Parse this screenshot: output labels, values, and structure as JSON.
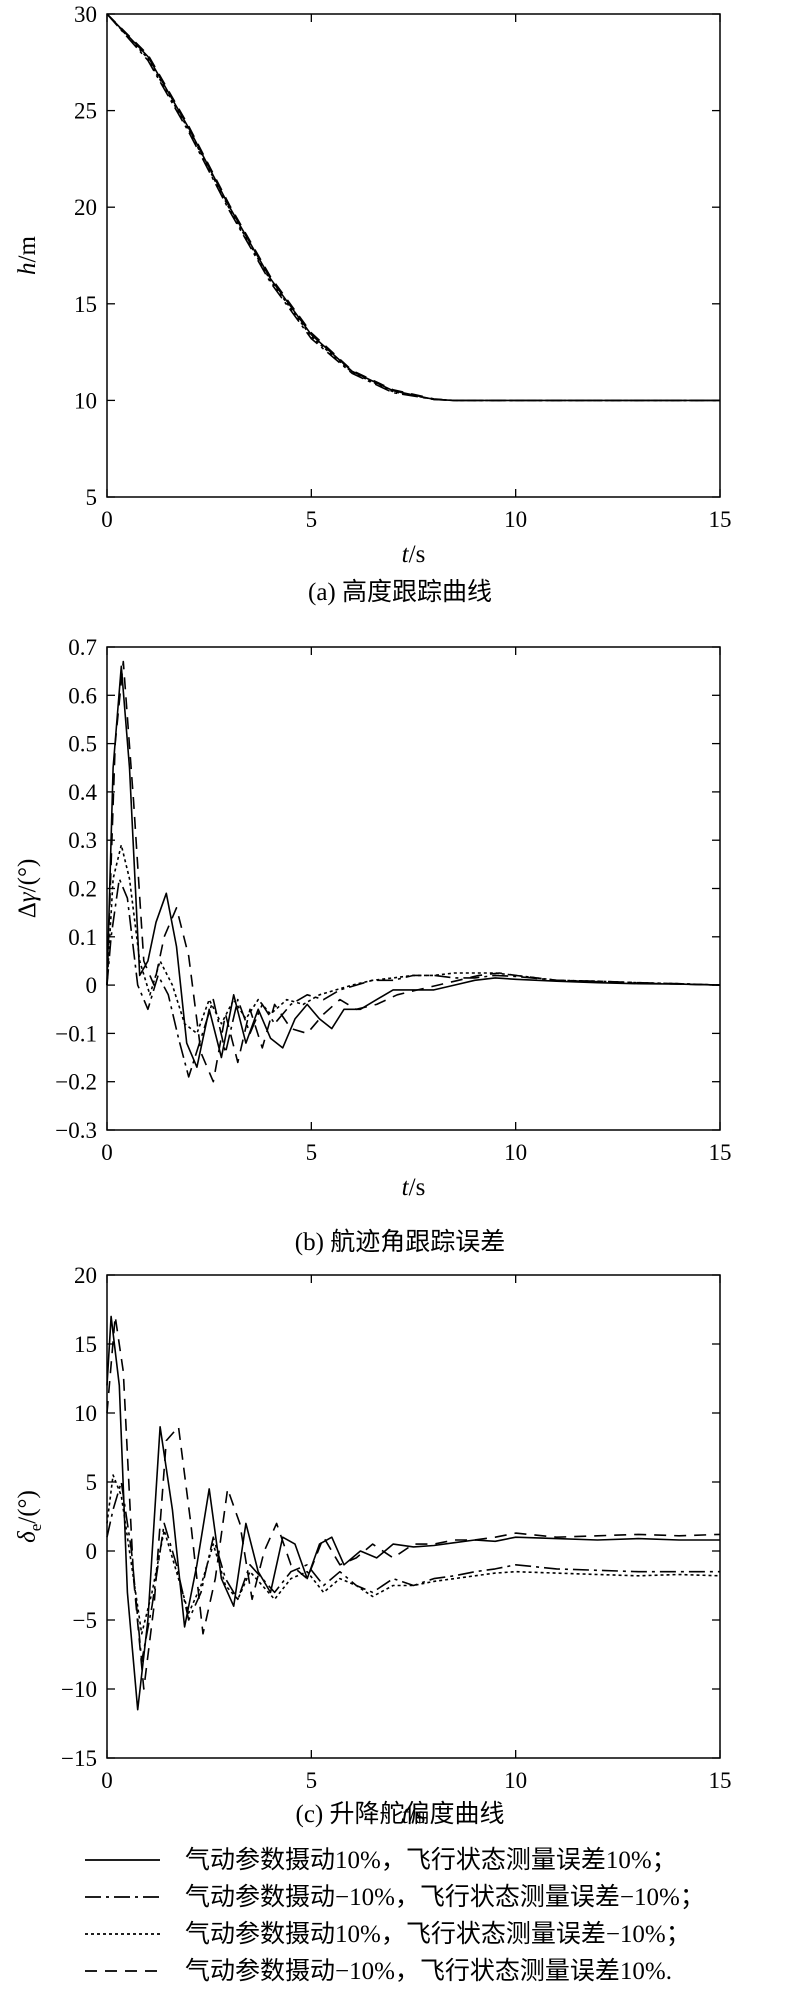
{
  "captions": [
    "(a) 高度跟踪曲线",
    "(b) 航迹角跟踪误差",
    "(c) 升降舵偏度曲线"
  ],
  "legend": [
    {
      "label": "气动参数摄动10%，飞行状态测量误差10%；",
      "style": "solid"
    },
    {
      "label": "气动参数摄动−10%，飞行状态测量误差−10%；",
      "style": "dashdot"
    },
    {
      "label": "气动参数摄动10%，飞行状态测量误差−10%；",
      "style": "dotted"
    },
    {
      "label": "气动参数摄动−10%，飞行状态测量误差10%.",
      "style": "dashed"
    }
  ],
  "chart_data": [
    {
      "type": "line",
      "title": "(a) 高度跟踪曲线",
      "xlabel": "t/s",
      "ylabel": "h/m",
      "xlim": [
        0,
        15
      ],
      "ylim": [
        5,
        30
      ],
      "xticks": [
        "0",
        "5",
        "10",
        "15"
      ],
      "yticks": [
        "5",
        "10",
        "15",
        "20",
        "25",
        "30"
      ],
      "grid": false,
      "series": [
        {
          "style": "solid",
          "x": [
            0,
            1,
            2,
            3,
            4,
            5,
            6,
            7,
            8,
            8.5,
            10,
            12,
            15
          ],
          "y": [
            30,
            27.8,
            24.1,
            20.0,
            16.3,
            13.4,
            11.5,
            10.5,
            10.05,
            10,
            10,
            10,
            10
          ]
        },
        {
          "style": "dashdot",
          "x": [
            0,
            1,
            2,
            3,
            4,
            5,
            6,
            7,
            8,
            8.5,
            10,
            12,
            15
          ],
          "y": [
            30,
            27.6,
            23.9,
            19.8,
            16.1,
            13.2,
            11.4,
            10.4,
            10.05,
            10,
            10,
            10,
            10
          ]
        },
        {
          "style": "dotted",
          "x": [
            0,
            1,
            2,
            3,
            4,
            5,
            6,
            7,
            8,
            8.5,
            10,
            12,
            15
          ],
          "y": [
            30,
            27.7,
            24.0,
            19.9,
            16.2,
            13.3,
            11.45,
            10.45,
            10.05,
            10,
            10,
            10,
            10
          ]
        },
        {
          "style": "dashed",
          "x": [
            0,
            1,
            2,
            3,
            4,
            5,
            6,
            7,
            8,
            8.5,
            10,
            12,
            15
          ],
          "y": [
            30,
            27.9,
            24.2,
            20.1,
            16.4,
            13.5,
            11.55,
            10.55,
            10.08,
            10,
            10,
            10,
            10
          ]
        }
      ]
    },
    {
      "type": "line",
      "title": "(b) 航迹角跟踪误差",
      "xlabel": "t/s",
      "ylabel": "Δγ/(°)",
      "xlim": [
        0,
        15
      ],
      "ylim": [
        -0.3,
        0.7
      ],
      "xticks": [
        "0",
        "5",
        "10",
        "15"
      ],
      "yticks": [
        "−0.3",
        "−0.2",
        "−0.1",
        "0",
        "0.1",
        "0.2",
        "0.3",
        "0.4",
        "0.5",
        "0.6",
        "0.7"
      ],
      "grid": false,
      "series": [
        {
          "style": "solid",
          "x": [
            0,
            0.15,
            0.35,
            0.55,
            0.8,
            1.0,
            1.2,
            1.45,
            1.7,
            1.95,
            2.2,
            2.5,
            2.8,
            3.1,
            3.4,
            3.7,
            4.0,
            4.3,
            4.6,
            4.9,
            5.2,
            5.5,
            5.8,
            6.2,
            6.6,
            7.0,
            7.5,
            8.0,
            8.5,
            9.0,
            9.5,
            10.0,
            11.0,
            12.0,
            13.0,
            14.0,
            15.0
          ],
          "y": [
            0,
            0.45,
            0.66,
            0.45,
            0.02,
            0.05,
            0.13,
            0.19,
            0.08,
            -0.12,
            -0.17,
            -0.05,
            -0.15,
            -0.02,
            -0.12,
            -0.05,
            -0.11,
            -0.13,
            -0.07,
            -0.04,
            -0.07,
            -0.09,
            -0.05,
            -0.05,
            -0.03,
            -0.01,
            -0.01,
            -0.01,
            0.0,
            0.01,
            0.015,
            0.012,
            0.008,
            0.005,
            0.003,
            0.002,
            0.0
          ]
        },
        {
          "style": "dashdot",
          "x": [
            0,
            0.1,
            0.3,
            0.5,
            0.75,
            1.0,
            1.25,
            1.5,
            1.75,
            2.0,
            2.3,
            2.6,
            2.9,
            3.2,
            3.5,
            3.8,
            4.1,
            4.5,
            4.9,
            5.3,
            5.7,
            6.1,
            6.5,
            7.0,
            7.5,
            8.0,
            8.5,
            9.0,
            9.5,
            10.0,
            11.0,
            12.0,
            13.0,
            14.0,
            15.0
          ],
          "y": [
            0,
            0.1,
            0.22,
            0.18,
            0.0,
            -0.05,
            0.02,
            -0.02,
            -0.11,
            -0.19,
            -0.11,
            -0.03,
            -0.14,
            -0.03,
            -0.1,
            -0.04,
            -0.08,
            -0.04,
            -0.02,
            -0.03,
            -0.01,
            0.0,
            0.01,
            0.01,
            0.02,
            0.02,
            0.015,
            0.015,
            0.02,
            0.018,
            0.01,
            0.008,
            0.005,
            0.003,
            0.0
          ]
        },
        {
          "style": "dotted",
          "x": [
            0,
            0.15,
            0.35,
            0.55,
            0.8,
            1.05,
            1.3,
            1.6,
            1.9,
            2.2,
            2.5,
            2.8,
            3.1,
            3.4,
            3.7,
            4.0,
            4.4,
            4.8,
            5.2,
            5.6,
            6.0,
            6.5,
            7.0,
            7.5,
            8.0,
            8.5,
            9.0,
            9.5,
            10.0,
            11.0,
            12.0,
            13.0,
            14.0,
            15.0
          ],
          "y": [
            0,
            0.22,
            0.29,
            0.22,
            0.05,
            -0.02,
            0.05,
            0.0,
            -0.08,
            -0.1,
            -0.03,
            -0.08,
            -0.03,
            -0.07,
            -0.03,
            -0.06,
            -0.03,
            -0.04,
            -0.02,
            -0.01,
            0.0,
            0.01,
            0.015,
            0.02,
            0.02,
            0.025,
            0.025,
            0.025,
            0.02,
            0.01,
            0.008,
            0.005,
            0.003,
            0.0
          ]
        },
        {
          "style": "dashed",
          "x": [
            0,
            0.2,
            0.4,
            0.65,
            0.9,
            1.15,
            1.4,
            1.7,
            2.0,
            2.3,
            2.6,
            2.9,
            3.2,
            3.5,
            3.8,
            4.1,
            4.5,
            4.9,
            5.3,
            5.7,
            6.1,
            6.6,
            7.1,
            7.6,
            8.1,
            8.6,
            9.1,
            9.6,
            10.0,
            11.0,
            12.0,
            13.0,
            14.0,
            15.0
          ],
          "y": [
            0,
            0.5,
            0.67,
            0.38,
            0.05,
            0.0,
            0.1,
            0.16,
            0.06,
            -0.14,
            -0.2,
            -0.06,
            -0.16,
            -0.05,
            -0.13,
            -0.04,
            -0.09,
            -0.1,
            -0.06,
            -0.03,
            -0.05,
            -0.04,
            -0.02,
            -0.01,
            0.0,
            0.01,
            0.02,
            0.025,
            0.02,
            0.01,
            0.007,
            0.004,
            0.002,
            0.0
          ]
        }
      ]
    },
    {
      "type": "line",
      "title": "(c) 升降舵偏度曲线",
      "xlabel": "t/s",
      "ylabel": "δe/(°)",
      "xlim": [
        0,
        15
      ],
      "ylim": [
        -15,
        20
      ],
      "xticks": [
        "0",
        "5",
        "10",
        "15"
      ],
      "yticks": [
        "−15",
        "−10",
        "−5",
        "0",
        "5",
        "10",
        "15",
        "20"
      ],
      "grid": false,
      "series": [
        {
          "style": "solid",
          "x": [
            0,
            0.1,
            0.3,
            0.5,
            0.75,
            1.0,
            1.3,
            1.6,
            1.9,
            2.2,
            2.5,
            2.8,
            3.1,
            3.4,
            3.7,
            4.0,
            4.3,
            4.6,
            4.9,
            5.2,
            5.5,
            5.8,
            6.2,
            6.6,
            7.0,
            7.5,
            8.0,
            8.5,
            9.0,
            9.5,
            10.0,
            11.0,
            12.0,
            13.0,
            14.0,
            15.0
          ],
          "y": [
            12,
            17,
            12,
            -3,
            -11.5,
            -5,
            9,
            3,
            -5.5,
            -1,
            4.5,
            -2,
            -4,
            2,
            -1.5,
            -3,
            1,
            0.5,
            -2,
            0.5,
            1,
            -1,
            0,
            -0.5,
            0.5,
            0.3,
            0.4,
            0.6,
            0.8,
            0.7,
            1.0,
            0.9,
            0.8,
            0.9,
            0.8,
            0.8
          ]
        },
        {
          "style": "dashdot",
          "x": [
            0,
            0.15,
            0.35,
            0.6,
            0.85,
            1.1,
            1.4,
            1.7,
            2.0,
            2.3,
            2.6,
            2.9,
            3.2,
            3.5,
            3.8,
            4.1,
            4.5,
            4.9,
            5.3,
            5.7,
            6.1,
            6.5,
            7.0,
            7.5,
            8.0,
            8.5,
            9.0,
            9.5,
            10.0,
            11.0,
            12.0,
            13.0,
            14.0,
            15.0
          ],
          "y": [
            1,
            3,
            5,
            0,
            -8,
            -4,
            2,
            -1,
            -5,
            -3,
            1,
            -2,
            -3.5,
            -1,
            -2,
            -3,
            -1.5,
            -1,
            -2.5,
            -1.5,
            -2.5,
            -3,
            -2,
            -2.5,
            -2,
            -1.8,
            -1.5,
            -1.3,
            -1,
            -1.3,
            -1.4,
            -1.5,
            -1.5,
            -1.5
          ]
        },
        {
          "style": "dotted",
          "x": [
            0,
            0.15,
            0.35,
            0.6,
            0.85,
            1.1,
            1.4,
            1.7,
            2.0,
            2.3,
            2.6,
            2.9,
            3.2,
            3.5,
            3.8,
            4.1,
            4.5,
            4.9,
            5.3,
            5.7,
            6.1,
            6.5,
            7.0,
            7.5,
            8.0,
            8.5,
            9.0,
            9.5,
            10.0,
            11.0,
            12.0,
            13.0,
            14.0,
            15.0
          ],
          "y": [
            2,
            5.5,
            4,
            -1,
            -6,
            -3,
            1.5,
            -1.5,
            -4.5,
            -2.5,
            0.5,
            -2.5,
            -3.5,
            -1.5,
            -2.5,
            -3.5,
            -2,
            -1.5,
            -3,
            -2,
            -2.5,
            -3.3,
            -2.5,
            -2.5,
            -2.2,
            -2,
            -1.8,
            -1.6,
            -1.5,
            -1.6,
            -1.7,
            -1.8,
            -1.7,
            -1.8
          ]
        },
        {
          "style": "dashed",
          "x": [
            0,
            0.2,
            0.4,
            0.65,
            0.9,
            1.15,
            1.45,
            1.75,
            2.05,
            2.35,
            2.65,
            2.95,
            3.25,
            3.55,
            3.85,
            4.15,
            4.5,
            4.9,
            5.3,
            5.7,
            6.1,
            6.5,
            7.0,
            7.5,
            8.0,
            8.5,
            9.0,
            9.5,
            10.0,
            11.0,
            12.0,
            13.0,
            14.0,
            15.0
          ],
          "y": [
            10,
            17,
            13,
            -2,
            -10,
            -4,
            8,
            9,
            2,
            -6,
            -2,
            4.5,
            2,
            -3.5,
            0,
            2,
            -1,
            -2,
            1,
            -1,
            -0.5,
            0.5,
            -0.5,
            0.5,
            0.5,
            0.8,
            0.8,
            1.0,
            1.3,
            1.0,
            1.1,
            1.2,
            1.1,
            1.2
          ]
        }
      ]
    }
  ]
}
